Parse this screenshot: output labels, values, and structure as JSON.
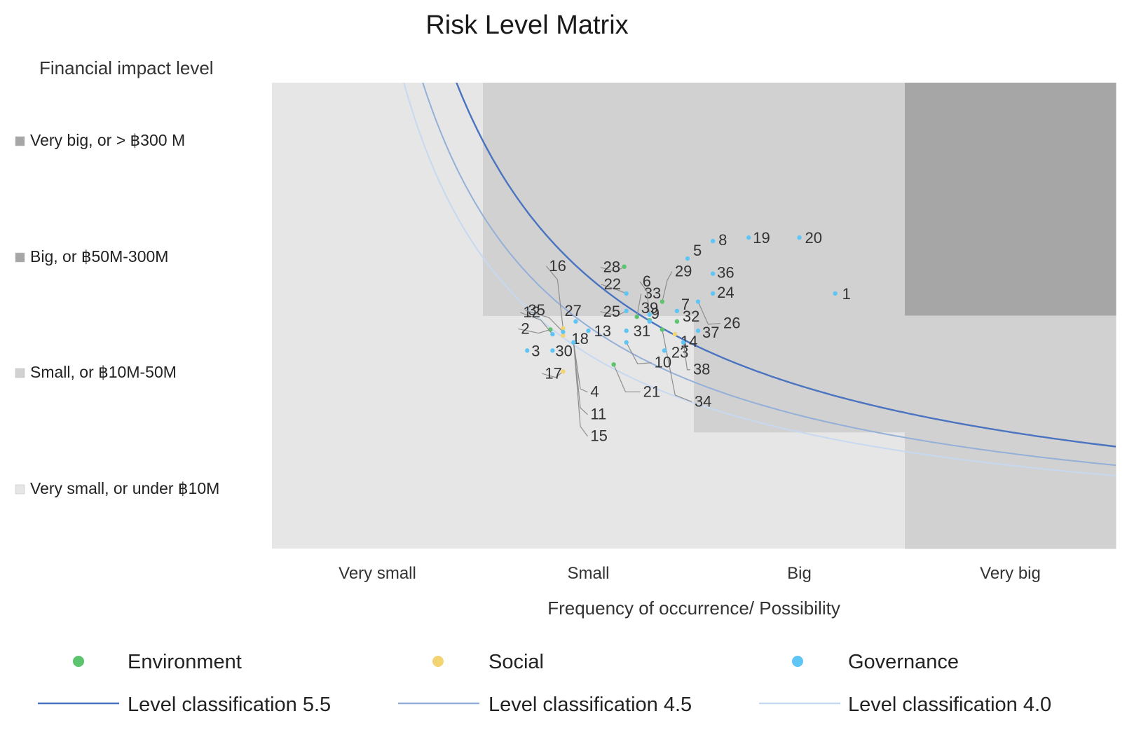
{
  "chart_data": {
    "type": "scatter",
    "title": "Risk Level Matrix",
    "ylabel": "Financial impact level",
    "xlabel": "Frequency of occurrence/ Possibility",
    "x_categories": [
      "Very small",
      "Small",
      "Big",
      "Very big"
    ],
    "y_categories": [
      "Very small, or under ฿10M",
      "Small, or ฿10M-50M",
      "Big, or ฿50M-300M",
      "Very big, or > ฿300 M"
    ],
    "xlim": [
      0,
      4
    ],
    "ylim": [
      0,
      4
    ],
    "zones": [
      {
        "level": 1,
        "color": "#e6e6e6"
      },
      {
        "level": 2,
        "color": "#d1d1d1"
      },
      {
        "level": 3,
        "color": "#a6a6a6"
      }
    ],
    "series": [
      {
        "name": "Environment",
        "color": "#5cc46e",
        "points": [
          {
            "label": "2",
            "x": 1.32,
            "y": 1.88
          },
          {
            "label": "28",
            "x": 1.67,
            "y": 2.42
          },
          {
            "label": "33",
            "x": 1.73,
            "y": 1.99
          },
          {
            "label": "29",
            "x": 1.85,
            "y": 2.12
          },
          {
            "label": "9",
            "x": 1.79,
            "y": 1.96
          },
          {
            "label": "32",
            "x": 1.92,
            "y": 1.95
          },
          {
            "label": "21",
            "x": 1.62,
            "y": 1.58
          },
          {
            "label": "34",
            "x": 1.85,
            "y": 1.88
          }
        ]
      },
      {
        "name": "Social",
        "color": "#f2d472",
        "points": [
          {
            "label": "18",
            "x": 1.38,
            "y": 1.83
          },
          {
            "label": "17",
            "x": 1.38,
            "y": 1.52
          },
          {
            "label": "16",
            "x": 1.38,
            "y": 1.89
          },
          {
            "label": "4",
            "x": 1.43,
            "y": 1.77
          },
          {
            "label": "14",
            "x": 1.91,
            "y": 1.84
          }
        ]
      },
      {
        "name": "Governance",
        "color": "#5ec5f5",
        "points": [
          {
            "label": "1",
            "x": 2.67,
            "y": 2.19
          },
          {
            "label": "3",
            "x": 1.21,
            "y": 1.7
          },
          {
            "label": "5",
            "x": 1.97,
            "y": 2.49
          },
          {
            "label": "6",
            "x": 1.79,
            "y": 2.01
          },
          {
            "label": "7",
            "x": 1.92,
            "y": 2.04
          },
          {
            "label": "8",
            "x": 2.09,
            "y": 2.64
          },
          {
            "label": "10",
            "x": 1.68,
            "y": 1.77
          },
          {
            "label": "11",
            "x": 1.43,
            "y": 1.77
          },
          {
            "label": "12",
            "x": 1.33,
            "y": 1.84
          },
          {
            "label": "13",
            "x": 1.5,
            "y": 1.87
          },
          {
            "label": "15",
            "x": 1.43,
            "y": 1.77
          },
          {
            "label": "19",
            "x": 2.26,
            "y": 2.67
          },
          {
            "label": "20",
            "x": 2.5,
            "y": 2.67
          },
          {
            "label": "22",
            "x": 1.68,
            "y": 2.19
          },
          {
            "label": "23",
            "x": 1.86,
            "y": 1.7
          },
          {
            "label": "24",
            "x": 2.09,
            "y": 2.19
          },
          {
            "label": "25",
            "x": 1.68,
            "y": 2.04
          },
          {
            "label": "26",
            "x": 2.02,
            "y": 2.12
          },
          {
            "label": "27",
            "x": 1.44,
            "y": 1.95
          },
          {
            "label": "30",
            "x": 1.33,
            "y": 1.7
          },
          {
            "label": "31",
            "x": 1.68,
            "y": 1.87
          },
          {
            "label": "35",
            "x": 1.38,
            "y": 1.86
          },
          {
            "label": "36",
            "x": 2.09,
            "y": 2.36
          },
          {
            "label": "37",
            "x": 2.02,
            "y": 1.87
          },
          {
            "label": "38",
            "x": 1.95,
            "y": 1.77
          },
          {
            "label": "39",
            "x": 1.79,
            "y": 1.95
          }
        ]
      }
    ],
    "curves": [
      {
        "name": "Level classification 5.5",
        "color": "#4a73c0",
        "k": 3.5
      },
      {
        "name": "Level classification 4.5",
        "color": "#94afd8",
        "k": 2.86
      },
      {
        "name": "Level classification 4.0",
        "color": "#c6d9f0",
        "k": 2.5
      }
    ],
    "grid": false,
    "legend_position": "bottom"
  }
}
